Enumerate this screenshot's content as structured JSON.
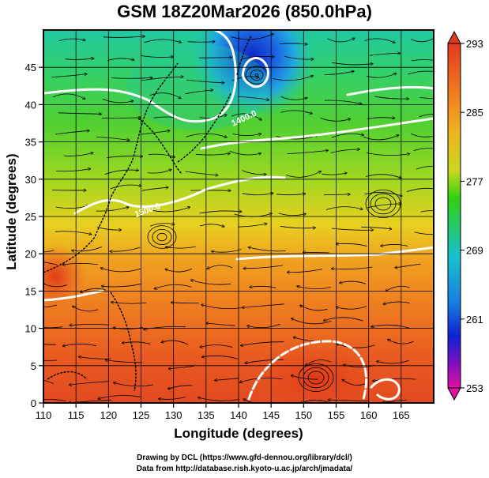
{
  "title": "GSM 18Z20Mar2026 (850.0hPa)",
  "x_axis": {
    "label": "Longitude (degrees)",
    "range": [
      110,
      170
    ],
    "ticks": [
      "110",
      "115",
      "120",
      "125",
      "130",
      "135",
      "140",
      "145",
      "150",
      "155",
      "160",
      "165"
    ]
  },
  "y_axis": {
    "label": "Latitude  (degrees)",
    "range": [
      0,
      50
    ],
    "ticks": [
      "0",
      "5",
      "10",
      "15",
      "20",
      "25",
      "30",
      "35",
      "40",
      "45"
    ]
  },
  "colorbar": {
    "range": [
      253,
      293
    ],
    "labels": [
      "293",
      "285",
      "277",
      "269",
      "261",
      "253"
    ],
    "colors": [
      "#e23a20",
      "#f0a020",
      "#30d010",
      "#18b0e0",
      "#1020d0",
      "#d010a0"
    ]
  },
  "contours": {
    "labels": [
      "1400.0",
      "1500.0"
    ]
  },
  "credits": {
    "line1": "Drawing by DCL (https://www.gfd-dennou.org/library/dcl/)",
    "line2": "Data from http://database.rish.kyoto-u.ac.jp/arch/jmadata/"
  }
}
